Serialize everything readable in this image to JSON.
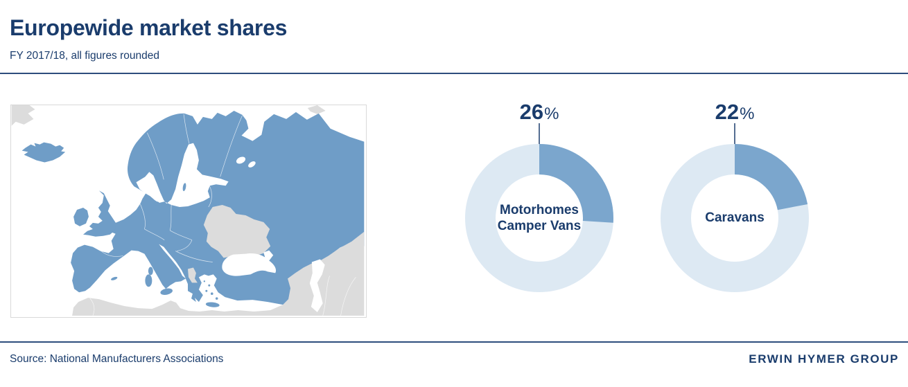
{
  "page": {
    "title": "Europewide market shares",
    "subtitle": "FY 2017/18, all figures rounded",
    "footer": {
      "source": "Source: National Manufacturers Associations",
      "brand": "ERWIN HYMER GROUP"
    }
  },
  "colors": {
    "navy_text": "#1a3c6c",
    "rule_blue": "#2d4d7d",
    "map_highlight_blue": "#6f9dc7",
    "map_other_land_gray": "#dcdcdc",
    "map_sea_white": "#ffffff",
    "donut_slice_blue": "#7ba6cd",
    "donut_remainder_blue": "#dde9f3"
  },
  "map": {
    "type": "choropleth",
    "highlight_color": "#6f9dc7",
    "muted_land_color": "#dcdcdc",
    "sea_color": "#ffffff",
    "border_color": "#ffffff"
  },
  "chart_data": [
    {
      "type": "pie",
      "subtype": "donut",
      "value_pct": 26,
      "value_label": "26",
      "unit": "%",
      "center_lines": [
        "Motorhomes",
        "Camper Vans"
      ],
      "slice_color": "#7ba6cd",
      "remainder_color": "#dde9f3",
      "start_angle_deg": 0,
      "direction": "clockwise",
      "labels_color": "#1a3c6c"
    },
    {
      "type": "pie",
      "subtype": "donut",
      "value_pct": 22,
      "value_label": "22",
      "unit": "%",
      "center_lines": [
        "Caravans"
      ],
      "slice_color": "#7ba6cd",
      "remainder_color": "#dde9f3",
      "start_angle_deg": 0,
      "direction": "clockwise",
      "labels_color": "#1a3c6c"
    }
  ]
}
